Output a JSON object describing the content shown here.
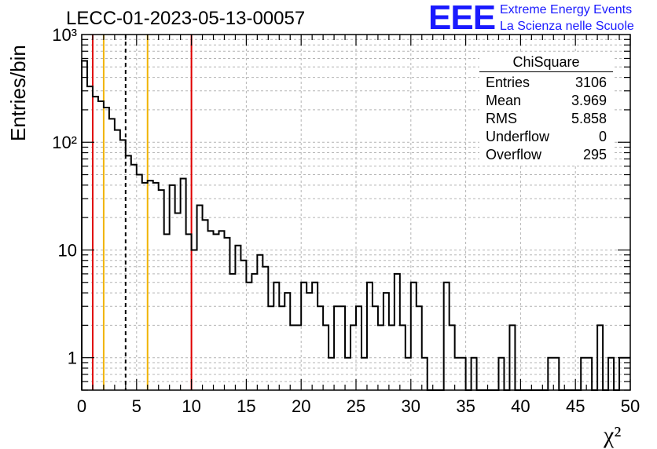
{
  "header": {
    "run_title": "LECC-01-2023-05-13-00057",
    "logo_mark": "EEE",
    "logo_line1": "Extreme Energy Events",
    "logo_line2": "La Scienza nelle Scuole"
  },
  "stats": {
    "title": "ChiSquare",
    "rows": [
      {
        "label": "Entries",
        "value": "3106"
      },
      {
        "label": "Mean",
        "value": "3.969"
      },
      {
        "label": "RMS",
        "value": "5.858"
      },
      {
        "label": "Underflow",
        "value": "0"
      },
      {
        "label": "Overflow",
        "value": "295"
      }
    ]
  },
  "chart_data": {
    "type": "histogram",
    "ylabel": "Entries/bin",
    "xlabel": "χ²",
    "xlim": [
      0,
      50
    ],
    "ylim": [
      0.5,
      1000
    ],
    "y_scale": "log",
    "grid": true,
    "bin_width": 0.5,
    "x_ticks": [
      "0",
      "5",
      "10",
      "15",
      "20",
      "25",
      "30",
      "35",
      "40",
      "45",
      "50"
    ],
    "y_ticks": [
      {
        "value": 1,
        "label": "1"
      },
      {
        "value": 10,
        "label": "10"
      },
      {
        "value": 100,
        "label": "10²"
      },
      {
        "value": 1000,
        "label": "10³"
      }
    ],
    "values": [
      570,
      330,
      265,
      240,
      210,
      165,
      130,
      105,
      75,
      62,
      50,
      42,
      44,
      42,
      36,
      14,
      40,
      22,
      46,
      14,
      10,
      26,
      19,
      15,
      14,
      15,
      13,
      6,
      11,
      8,
      5,
      6,
      9,
      7,
      3,
      5,
      3,
      4,
      2,
      2,
      5,
      4,
      5,
      3,
      2,
      1,
      3,
      3,
      1,
      2,
      3,
      1,
      5,
      3,
      2,
      4,
      2,
      6,
      2,
      1,
      5,
      3,
      1,
      0,
      0,
      0,
      5,
      2,
      1,
      1,
      0,
      1,
      0,
      0,
      0,
      0,
      1,
      0,
      2,
      0,
      0,
      0,
      0,
      0,
      0,
      1,
      1,
      0,
      0,
      0,
      0,
      1,
      1,
      0,
      2,
      0,
      1,
      0,
      1,
      1
    ],
    "vertical_lines": [
      {
        "x": 1,
        "color": "#e00000",
        "style": "solid"
      },
      {
        "x": 2,
        "color": "#f0b400",
        "style": "solid"
      },
      {
        "x": 4,
        "color": "#000000",
        "style": "dashed"
      },
      {
        "x": 6,
        "color": "#f0b400",
        "style": "solid"
      },
      {
        "x": 10,
        "color": "#e00000",
        "style": "solid"
      }
    ]
  }
}
